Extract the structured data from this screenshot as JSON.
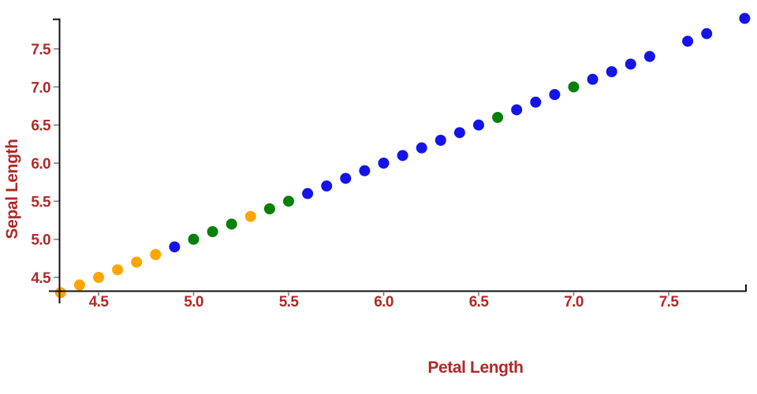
{
  "chart_data": {
    "type": "scatter",
    "title": "",
    "xlabel": "Petal Length",
    "ylabel": "Sepal Length",
    "x_ticks": [
      4.5,
      5.0,
      5.5,
      6.0,
      6.5,
      7.0,
      7.5
    ],
    "y_ticks": [
      4.5,
      5.0,
      5.5,
      6.0,
      6.5,
      7.0,
      7.5
    ],
    "x_range": [
      4.3,
      7.9
    ],
    "y_range": [
      4.3,
      7.9
    ],
    "grid": false,
    "legend_position": "none",
    "marker": "circle",
    "series": [
      {
        "name": "orange",
        "color": "#FFA500",
        "points": [
          [
            4.3,
            4.3
          ],
          [
            4.4,
            4.4
          ],
          [
            4.5,
            4.5
          ],
          [
            4.6,
            4.6
          ],
          [
            4.7,
            4.7
          ],
          [
            4.8,
            4.8
          ],
          [
            5.3,
            5.3
          ]
        ]
      },
      {
        "name": "green",
        "color": "#078007",
        "points": [
          [
            5.0,
            5.0
          ],
          [
            5.1,
            5.1
          ],
          [
            5.2,
            5.2
          ],
          [
            5.4,
            5.4
          ],
          [
            5.5,
            5.5
          ],
          [
            6.6,
            6.6
          ],
          [
            7.0,
            7.0
          ]
        ]
      },
      {
        "name": "blue",
        "color": "#1414E8",
        "points": [
          [
            4.9,
            4.9
          ],
          [
            5.6,
            5.6
          ],
          [
            5.7,
            5.7
          ],
          [
            5.8,
            5.8
          ],
          [
            5.9,
            5.9
          ],
          [
            6.0,
            6.0
          ],
          [
            6.1,
            6.1
          ],
          [
            6.2,
            6.2
          ],
          [
            6.3,
            6.3
          ],
          [
            6.4,
            6.4
          ],
          [
            6.5,
            6.5
          ],
          [
            6.7,
            6.7
          ],
          [
            6.8,
            6.8
          ],
          [
            6.9,
            6.9
          ],
          [
            7.1,
            7.1
          ],
          [
            7.2,
            7.2
          ],
          [
            7.3,
            7.3
          ],
          [
            7.4,
            7.4
          ],
          [
            7.6,
            7.6
          ],
          [
            7.7,
            7.7
          ],
          [
            7.9,
            7.9
          ]
        ]
      }
    ]
  },
  "style": {
    "background_color": "#FFFFFF",
    "axis_line_color": "#111111",
    "tick_mark_color": "#808080",
    "label_color": "#B22828"
  }
}
